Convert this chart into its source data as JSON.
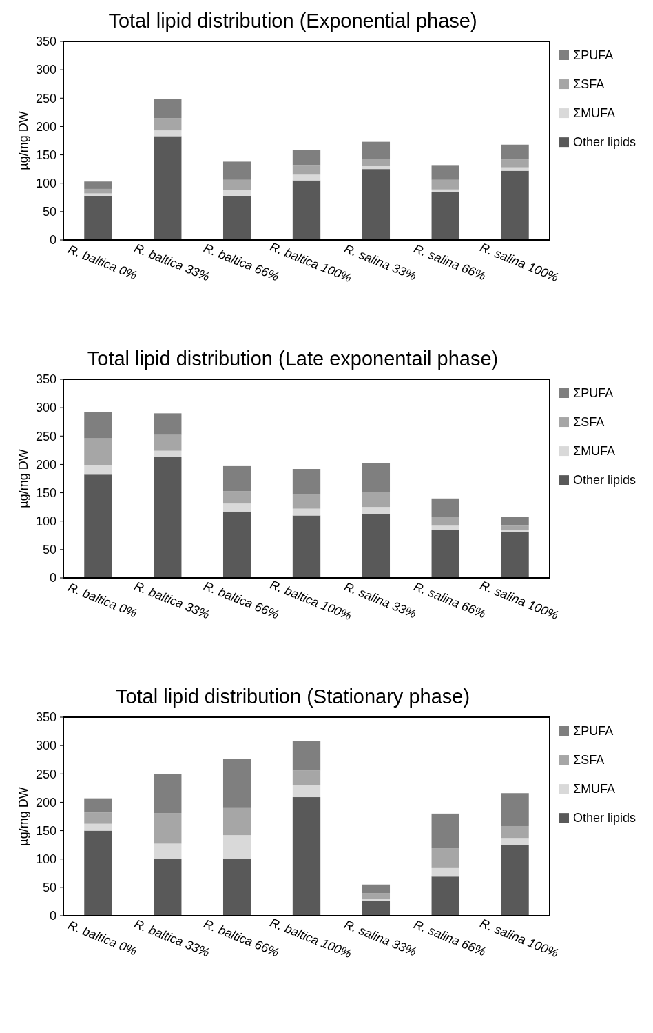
{
  "chart_data": [
    {
      "type": "bar",
      "stacked": true,
      "title": "Total lipid distribution (Exponential phase)",
      "ylabel": "µg/mg DW",
      "categories": [
        "R. baltica 0%",
        "R. baltica 33%",
        "R. baltica 66%",
        "R. baltica 100%",
        "R. salina 33%",
        "R. salina 66%",
        "R. salina 100%"
      ],
      "ylim": [
        0,
        350
      ],
      "yticks": [
        0,
        50,
        100,
        150,
        200,
        250,
        300,
        350
      ],
      "legend": "right",
      "series": [
        {
          "name": "Other lipids",
          "color": "#595959",
          "values": [
            78,
            183,
            78,
            105,
            125,
            84,
            122
          ]
        },
        {
          "name": "ΣMUFA",
          "color": "#d9d9d9",
          "values": [
            4,
            10,
            10,
            10,
            6,
            5,
            6
          ]
        },
        {
          "name": "ΣSFA",
          "color": "#a6a6a6",
          "values": [
            8,
            22,
            18,
            17,
            12,
            17,
            14
          ]
        },
        {
          "name": "ΣPUFA",
          "color": "#7f7f7f",
          "values": [
            13,
            34,
            32,
            27,
            30,
            26,
            26
          ]
        }
      ]
    },
    {
      "type": "bar",
      "stacked": true,
      "title": "Total lipid distribution (Late exponentail phase)",
      "ylabel": "µg/mg DW",
      "categories": [
        "R. baltica 0%",
        "R. baltica 33%",
        "R. baltica 66%",
        "R. baltica 100%",
        "R. salina 33%",
        "R. salina 66%",
        "R. salina 100%"
      ],
      "ylim": [
        0,
        350
      ],
      "yticks": [
        0,
        50,
        100,
        150,
        200,
        250,
        300,
        350
      ],
      "legend": "right",
      "series": [
        {
          "name": "Other lipids",
          "color": "#595959",
          "values": [
            182,
            213,
            117,
            110,
            112,
            84,
            81
          ]
        },
        {
          "name": "ΣMUFA",
          "color": "#d9d9d9",
          "values": [
            17,
            11,
            14,
            12,
            13,
            8,
            3
          ]
        },
        {
          "name": "ΣSFA",
          "color": "#a6a6a6",
          "values": [
            47,
            28,
            22,
            25,
            26,
            16,
            8
          ]
        },
        {
          "name": "ΣPUFA",
          "color": "#7f7f7f",
          "values": [
            46,
            38,
            44,
            45,
            51,
            32,
            15
          ]
        }
      ]
    },
    {
      "type": "bar",
      "stacked": true,
      "title": "Total lipid distribution (Stationary phase)",
      "ylabel": "µg/mg DW",
      "categories": [
        "R. baltica 0%",
        "R. baltica 33%",
        "R. baltica 66%",
        "R. baltica 100%",
        "R. salina 33%",
        "R. salina 66%",
        "R. salina 100%"
      ],
      "ylim": [
        0,
        350
      ],
      "yticks": [
        0,
        50,
        100,
        150,
        200,
        250,
        300,
        350
      ],
      "legend": "right",
      "series": [
        {
          "name": "Other lipids",
          "color": "#595959",
          "values": [
            150,
            100,
            100,
            209,
            26,
            69,
            124
          ]
        },
        {
          "name": "ΣMUFA",
          "color": "#d9d9d9",
          "values": [
            12,
            27,
            42,
            21,
            4,
            15,
            13
          ]
        },
        {
          "name": "ΣSFA",
          "color": "#a6a6a6",
          "values": [
            20,
            54,
            49,
            26,
            10,
            35,
            21
          ]
        },
        {
          "name": "ΣPUFA",
          "color": "#7f7f7f",
          "values": [
            25,
            69,
            85,
            52,
            15,
            61,
            58
          ]
        }
      ]
    }
  ]
}
